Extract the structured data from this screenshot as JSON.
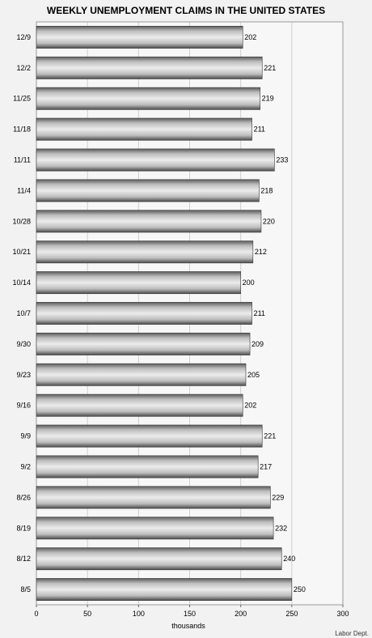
{
  "chart_data": {
    "type": "bar",
    "orientation": "horizontal",
    "title": "WEEKLY UNEMPLOYMENT CLAIMS IN THE UNITED STATES",
    "xlabel": "thousands",
    "source": "Labor Dept.",
    "xlim": [
      0,
      300
    ],
    "xticks": [
      0,
      50,
      100,
      150,
      200,
      250,
      300
    ],
    "grid": true,
    "categories": [
      "12/9",
      "12/2",
      "11/25",
      "11/18",
      "11/11",
      "11/4",
      "10/28",
      "10/21",
      "10/14",
      "10/7",
      "9/30",
      "9/23",
      "9/16",
      "9/9",
      "9/2",
      "8/26",
      "8/19",
      "8/12",
      "8/5"
    ],
    "values": [
      202,
      221,
      219,
      211,
      233,
      218,
      220,
      212,
      200,
      211,
      209,
      205,
      202,
      221,
      217,
      229,
      232,
      240,
      250
    ],
    "colors": {
      "bar_light": "#e6e6e6",
      "bar_dark": "#4a4a4a",
      "background": "#f2f2f2",
      "grid": "#d0d0d0"
    }
  }
}
